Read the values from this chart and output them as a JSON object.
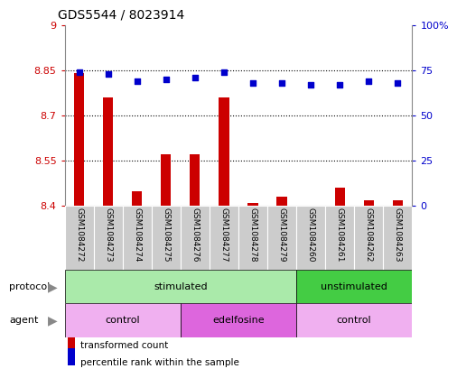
{
  "title": "GDS5544 / 8023914",
  "samples": [
    "GSM1084272",
    "GSM1084273",
    "GSM1084274",
    "GSM1084275",
    "GSM1084276",
    "GSM1084277",
    "GSM1084278",
    "GSM1084279",
    "GSM1084260",
    "GSM1084261",
    "GSM1084262",
    "GSM1084263"
  ],
  "bar_values": [
    8.84,
    8.76,
    8.45,
    8.57,
    8.57,
    8.76,
    8.41,
    8.43,
    8.4,
    8.46,
    8.42,
    8.42
  ],
  "scatter_values": [
    74,
    73,
    69,
    70,
    71,
    74,
    68,
    68,
    67,
    67,
    69,
    68
  ],
  "ylim_left": [
    8.4,
    9.0
  ],
  "ylim_right": [
    0,
    100
  ],
  "yticks_left": [
    8.4,
    8.55,
    8.7,
    8.85,
    9.0
  ],
  "ytick_labels_left": [
    "8.4",
    "8.55",
    "8.7",
    "8.85",
    "9"
  ],
  "yticks_right": [
    0,
    25,
    50,
    75,
    100
  ],
  "ytick_labels_right": [
    "0",
    "25",
    "50",
    "75",
    "100%"
  ],
  "hlines": [
    8.55,
    8.7,
    8.85
  ],
  "bar_color": "#cc0000",
  "scatter_color": "#0000cc",
  "bar_bottom": 8.4,
  "bar_width": 0.35,
  "protocol_groups": [
    {
      "label": "stimulated",
      "start": 0,
      "end": 7,
      "color": "#aaeaaa"
    },
    {
      "label": "unstimulated",
      "start": 8,
      "end": 11,
      "color": "#44cc44"
    }
  ],
  "agent_groups": [
    {
      "label": "control",
      "start": 0,
      "end": 3,
      "color": "#f0b0f0"
    },
    {
      "label": "edelfosine",
      "start": 4,
      "end": 7,
      "color": "#dd66dd"
    },
    {
      "label": "control",
      "start": 8,
      "end": 11,
      "color": "#f0b0f0"
    }
  ],
  "legend_bar_label": "transformed count",
  "legend_scatter_label": "percentile rank within the sample",
  "background_color": "#ffffff",
  "plot_bg_color": "#ffffff",
  "tick_bg_color": "#cccccc",
  "arrow_color": "#888888"
}
